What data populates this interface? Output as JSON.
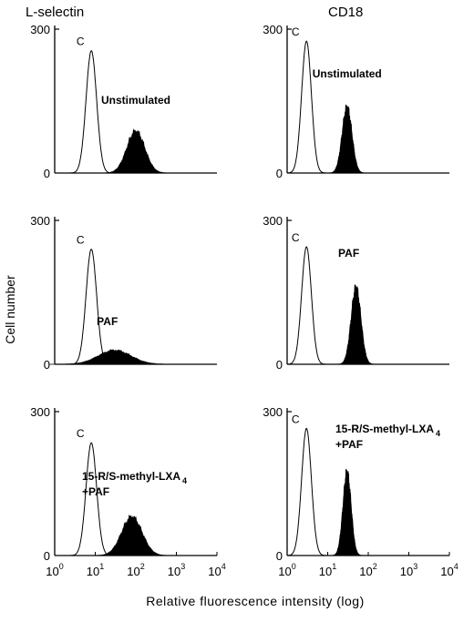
{
  "figure": {
    "column_titles": [
      "L-selectin",
      "CD18"
    ],
    "ylabel": "Cell number",
    "xlabel": "Relative fluorescence intensity (log)"
  },
  "chart_data": [
    {
      "type": "area",
      "panel": "L-selectin / Unstimulated",
      "column": "L-selectin",
      "row": 0,
      "control_label": "C",
      "annotation": [
        "Unstimulated"
      ],
      "ylim": [
        0,
        300
      ],
      "yticks": [
        "300",
        "0"
      ],
      "xscale": "log",
      "xlim": [
        1,
        10000
      ],
      "series": [
        {
          "name": "C",
          "fill": "none",
          "peak_x": 8,
          "peak_y": 255,
          "width": 0.13
        },
        {
          "name": "Unstimulated",
          "fill": "black",
          "peak_x": 100,
          "peak_y": 95,
          "width": 0.22
        }
      ]
    },
    {
      "type": "area",
      "panel": "L-selectin / PAF",
      "column": "L-selectin",
      "row": 1,
      "control_label": "C",
      "annotation": [
        "PAF"
      ],
      "ylim": [
        0,
        300
      ],
      "yticks": [
        "300",
        "0"
      ],
      "xscale": "log",
      "xlim": [
        1,
        10000
      ],
      "series": [
        {
          "name": "C",
          "fill": "none",
          "peak_x": 8,
          "peak_y": 240,
          "width": 0.13
        },
        {
          "name": "PAF",
          "fill": "black",
          "peak_x": 30,
          "peak_y": 32,
          "width": 0.4
        }
      ]
    },
    {
      "type": "area",
      "panel": "L-selectin / 15-R/S-methyl-LXA4+PAF",
      "column": "L-selectin",
      "row": 2,
      "control_label": "C",
      "annotation": [
        "15-R/S-methyl-LXA",
        "4",
        "+PAF"
      ],
      "ylim": [
        0,
        300
      ],
      "yticks": [
        "300",
        "0"
      ],
      "xscale": "log",
      "xlim": [
        1,
        10000
      ],
      "series": [
        {
          "name": "C",
          "fill": "none",
          "peak_x": 8,
          "peak_y": 235,
          "width": 0.13
        },
        {
          "name": "15-R/S-methyl-LXA4+PAF",
          "fill": "black",
          "peak_x": 80,
          "peak_y": 88,
          "width": 0.25
        }
      ]
    },
    {
      "type": "area",
      "panel": "CD18 / Unstimulated",
      "column": "CD18",
      "row": 0,
      "control_label": "C",
      "annotation": [
        "Unstimulated"
      ],
      "ylim": [
        0,
        300
      ],
      "yticks": [
        "300",
        "0"
      ],
      "xscale": "log",
      "xlim": [
        1,
        10000
      ],
      "series": [
        {
          "name": "C",
          "fill": "none",
          "peak_x": 3,
          "peak_y": 275,
          "width": 0.12
        },
        {
          "name": "Unstimulated",
          "fill": "black",
          "peak_x": 30,
          "peak_y": 150,
          "width": 0.12
        }
      ]
    },
    {
      "type": "area",
      "panel": "CD18 / PAF",
      "column": "CD18",
      "row": 1,
      "control_label": "C",
      "annotation": [
        "PAF"
      ],
      "ylim": [
        0,
        300
      ],
      "yticks": [
        "300",
        "0"
      ],
      "xscale": "log",
      "xlim": [
        1,
        10000
      ],
      "series": [
        {
          "name": "C",
          "fill": "none",
          "peak_x": 3,
          "peak_y": 245,
          "width": 0.12
        },
        {
          "name": "PAF",
          "fill": "black",
          "peak_x": 50,
          "peak_y": 175,
          "width": 0.12
        }
      ]
    },
    {
      "type": "area",
      "panel": "CD18 / 15-R/S-methyl-LXA4+PAF",
      "column": "CD18",
      "row": 2,
      "control_label": "C",
      "annotation": [
        "15-R/S-methyl-LXA",
        "4",
        "+PAF"
      ],
      "ylim": [
        0,
        300
      ],
      "yticks": [
        "300",
        "0"
      ],
      "xscale": "log",
      "xlim": [
        1,
        10000
      ],
      "series": [
        {
          "name": "C",
          "fill": "none",
          "peak_x": 3,
          "peak_y": 265,
          "width": 0.12
        },
        {
          "name": "15-R/S-methyl-LXA4+PAF",
          "fill": "black",
          "peak_x": 30,
          "peak_y": 190,
          "width": 0.1
        }
      ]
    }
  ],
  "xticks": [
    {
      "base": "10",
      "exp": "0"
    },
    {
      "base": "10",
      "exp": "1"
    },
    {
      "base": "10",
      "exp": "2"
    },
    {
      "base": "10",
      "exp": "3"
    },
    {
      "base": "10",
      "exp": "4"
    }
  ]
}
